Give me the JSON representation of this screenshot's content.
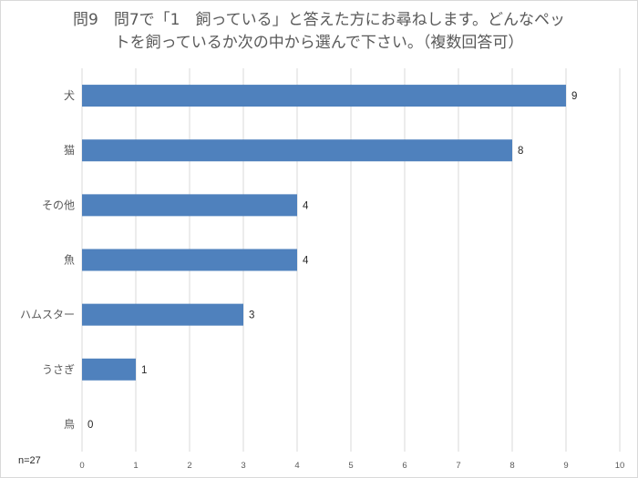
{
  "chart_data": {
    "type": "bar",
    "orientation": "horizontal",
    "title_lines": [
      "問9　問7で「1　飼っている」と答えた方にお尋ねします。どんなペッ",
      "トを飼っているか次の中から選んで下さい。（複数回答可）"
    ],
    "categories": [
      "犬",
      "猫",
      "その他",
      "魚",
      "ハムスター",
      "うさぎ",
      "鳥"
    ],
    "values": [
      9,
      8,
      4,
      4,
      3,
      1,
      0
    ],
    "xlim": [
      0,
      10
    ],
    "xticks": [
      "0",
      "1",
      "2",
      "3",
      "4",
      "5",
      "6",
      "7",
      "8",
      "9",
      "10"
    ],
    "grid": "vertical",
    "bar_color": "#4f81bd",
    "sample_note": "n=27"
  }
}
